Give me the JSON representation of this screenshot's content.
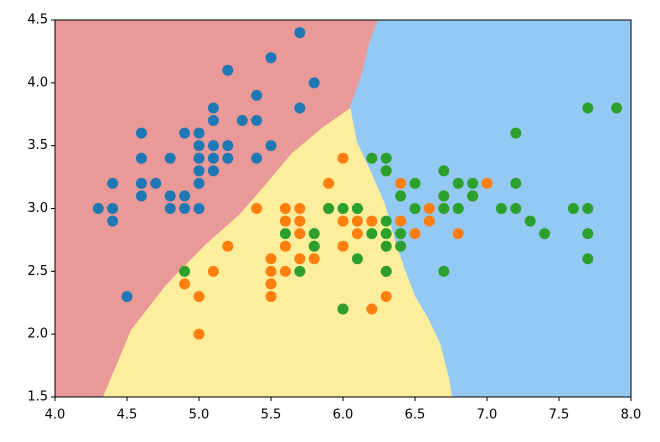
{
  "chart_data": {
    "type": "scatter",
    "xlim": [
      4,
      8
    ],
    "ylim": [
      1.5,
      4.5
    ],
    "xticks": [
      {
        "value": 4,
        "label": "4.0"
      },
      4.5,
      {
        "value": 5,
        "label": "5.0"
      },
      5.5,
      {
        "value": 6,
        "label": "6.0"
      },
      6.5,
      {
        "value": 7,
        "label": "7.0"
      },
      7.5,
      {
        "value": 8,
        "label": "8.0"
      }
    ],
    "yticks": [
      {
        "value": 1.5,
        "label": "1.5"
      },
      {
        "value": 2,
        "label": "2.0"
      },
      2.5,
      {
        "value": 3,
        "label": "3.0"
      },
      3.5,
      {
        "value": 4,
        "label": "4.0"
      },
      4.5
    ],
    "series": [
      {
        "color": "#1f77b4",
        "x": [
          5.1,
          4.9,
          4.7,
          4.6,
          5.0,
          5.4,
          4.6,
          5.0,
          4.4,
          4.9,
          5.4,
          4.8,
          4.8,
          4.3,
          5.8,
          5.7,
          5.7,
          5.1,
          5.1,
          4.6,
          5.1,
          5.0,
          5.2,
          5.2,
          4.8,
          5.4,
          5.2,
          5.5,
          5.0,
          5.5,
          4.9,
          4.4,
          5.1,
          5.0,
          4.5,
          4.4,
          4.6,
          5.3,
          5.0
        ],
        "values": [
          3.5,
          3.0,
          3.2,
          3.1,
          3.6,
          3.9,
          3.4,
          3.4,
          2.9,
          3.1,
          3.7,
          3.4,
          3.0,
          3.0,
          4.0,
          4.4,
          3.8,
          3.8,
          3.7,
          3.6,
          3.3,
          3.0,
          3.5,
          3.4,
          3.1,
          3.4,
          4.1,
          4.2,
          3.2,
          3.5,
          3.6,
          3.0,
          3.4,
          3.5,
          2.3,
          3.2,
          3.2,
          3.7,
          3.3
        ]
      },
      {
        "color": "#ff7f0e",
        "x": [
          7.0,
          6.4,
          6.9,
          5.5,
          6.5,
          5.7,
          6.3,
          4.9,
          6.6,
          5.2,
          5.0,
          5.9,
          6.0,
          6.1,
          5.6,
          6.7,
          5.6,
          5.8,
          6.2,
          5.6,
          5.9,
          6.1,
          6.3,
          6.4,
          6.6,
          6.8,
          6.7,
          6.0,
          5.7,
          5.5,
          6.0,
          5.4,
          6.0,
          6.3,
          5.5,
          5.5,
          6.1,
          5.8,
          5.0,
          5.6,
          5.7,
          5.7,
          6.2,
          5.1
        ],
        "values": [
          3.2,
          3.2,
          3.1,
          2.3,
          2.8,
          2.8,
          3.3,
          2.4,
          2.9,
          2.7,
          2.0,
          3.0,
          2.2,
          2.9,
          2.9,
          3.1,
          3.0,
          2.7,
          2.2,
          2.5,
          3.2,
          2.8,
          2.5,
          2.9,
          3.0,
          2.8,
          3.0,
          2.9,
          2.6,
          2.4,
          2.7,
          3.0,
          3.4,
          2.3,
          2.5,
          2.6,
          3.0,
          2.6,
          2.3,
          2.7,
          3.0,
          2.9,
          2.9,
          2.5
        ]
      },
      {
        "color": "#2ca02c",
        "x": [
          6.3,
          5.8,
          7.1,
          6.3,
          6.5,
          7.6,
          4.9,
          7.3,
          6.7,
          7.2,
          6.5,
          6.4,
          6.8,
          5.7,
          5.8,
          7.7,
          7.7,
          6.0,
          6.9,
          5.6,
          7.7,
          6.3,
          6.7,
          7.2,
          6.2,
          6.1,
          6.4,
          7.2,
          7.4,
          7.9,
          6.3,
          6.1,
          7.7,
          6.3,
          6.4,
          6.0,
          6.9,
          6.7,
          6.8,
          6.7,
          6.3,
          6.2,
          5.9
        ],
        "values": [
          3.3,
          2.7,
          3.0,
          2.9,
          3.0,
          3.0,
          2.5,
          2.9,
          2.5,
          3.6,
          3.2,
          2.7,
          3.0,
          2.5,
          2.8,
          3.8,
          2.6,
          2.2,
          3.2,
          2.8,
          2.8,
          2.7,
          3.3,
          3.2,
          2.8,
          3.0,
          2.8,
          3.0,
          2.8,
          3.8,
          2.8,
          2.6,
          3.0,
          3.4,
          3.1,
          3.0,
          3.1,
          3.1,
          3.2,
          3.0,
          2.5,
          3.4,
          3.0
        ]
      }
    ]
  }
}
